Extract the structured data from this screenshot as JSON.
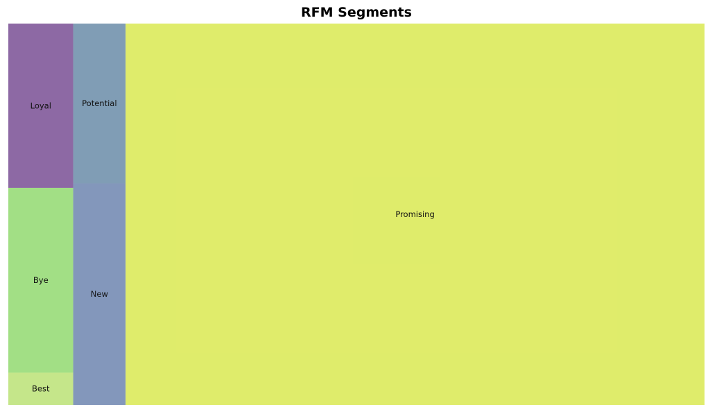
{
  "chart_data": {
    "type": "treemap",
    "title": "RFM Segments",
    "alpha": 0.7,
    "segments": [
      {
        "label": "Best",
        "value": 1.1,
        "color": "#addc58"
      },
      {
        "label": "Bye",
        "value": 6.3,
        "color": "#7ad151"
      },
      {
        "label": "Loyal",
        "value": 5.6,
        "color": "#5c2a7e"
      },
      {
        "label": "New",
        "value": 6.1,
        "color": "#4e6b9e"
      },
      {
        "label": "Potential",
        "value": 4.4,
        "color": "#4a7496"
      },
      {
        "label": "Promising",
        "value": 116.0,
        "color": "#d2e42c"
      }
    ]
  }
}
